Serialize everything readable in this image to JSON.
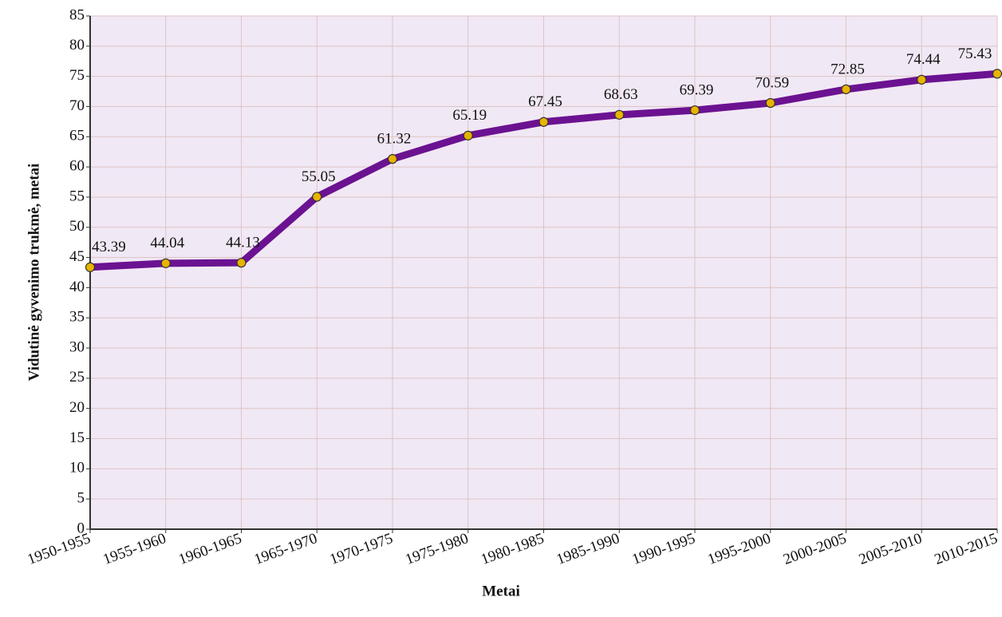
{
  "chart_data": {
    "type": "line",
    "xlabel": "Metai",
    "ylabel": "Vidutinė gyvenimo trukmė, metai",
    "categories": [
      "1950-1955",
      "1955-1960",
      "1960-1965",
      "1965-1970",
      "1970-1975",
      "1975-1980",
      "1980-1985",
      "1985-1990",
      "1990-1995",
      "1995-2000",
      "2000-2005",
      "2005-2010",
      "2010-2015"
    ],
    "series": [
      {
        "color": "#6b1291",
        "marker_color": "#e8b400",
        "values": [
          43.39,
          44.04,
          44.13,
          55.05,
          61.32,
          65.19,
          67.45,
          68.63,
          69.39,
          70.59,
          72.85,
          74.44,
          75.43
        ]
      }
    ],
    "ylim": [
      0,
      85
    ],
    "yticks": [
      0,
      5,
      10,
      15,
      20,
      25,
      30,
      35,
      40,
      45,
      50,
      55,
      60,
      65,
      70,
      75,
      80,
      85
    ],
    "grid": true
  }
}
